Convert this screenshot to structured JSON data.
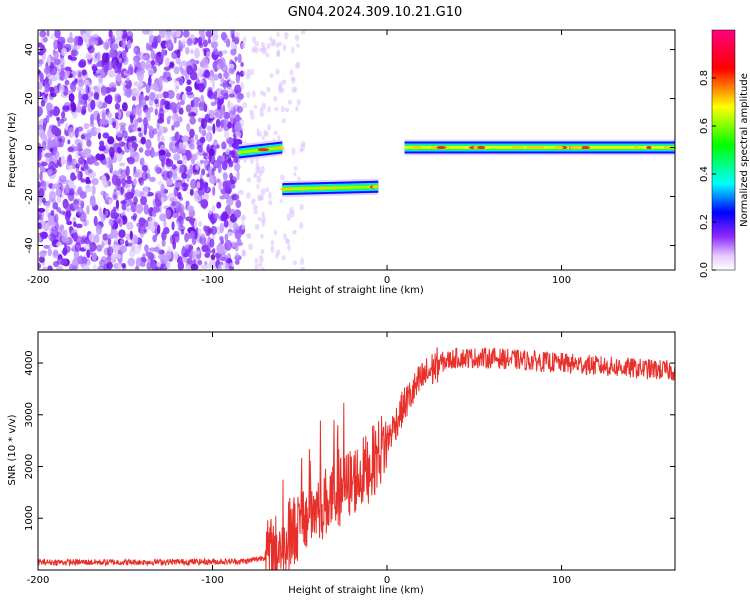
{
  "title": "GN04.2024.309.10.21.G10",
  "chart_data": [
    {
      "type": "heatmap",
      "xlabel": "Height of straight line (km)",
      "ylabel": "Frequency (Hz)",
      "xlim": [
        -200,
        165
      ],
      "ylim": [
        -50,
        48
      ],
      "xticks": [
        "-200",
        "-100",
        "0",
        "100"
      ],
      "xtick_values": [
        -200,
        -100,
        0,
        100
      ],
      "yticks": [
        "-40",
        "-20",
        "0",
        "20",
        "40"
      ],
      "ytick_values": [
        -40,
        -20,
        0,
        20,
        40
      ],
      "colorbar": {
        "label": "Normalized spectral amplitude",
        "ticks": [
          "0.0",
          "0.2",
          "0.4",
          "0.6",
          "0.8"
        ],
        "tick_values": [
          0.0,
          0.2,
          0.4,
          0.6,
          0.8
        ],
        "range": [
          0,
          1
        ]
      },
      "noise_region_x": [
        -200,
        -83
      ],
      "tracks": [
        {
          "x": [
            -85,
            -60
          ],
          "freq": [
            -2,
            0
          ],
          "amp": 0.6
        },
        {
          "x": [
            -60,
            -5
          ],
          "freq": [
            -17,
            -16
          ],
          "amp": 0.75
        },
        {
          "x": [
            10,
            165
          ],
          "freq": [
            0,
            0
          ],
          "amp": 0.9
        }
      ]
    },
    {
      "type": "line",
      "xlabel": "Height of straight line (km)",
      "ylabel": "SNR (10 * v/v)",
      "xlim": [
        -200,
        165
      ],
      "ylim": [
        0,
        4600
      ],
      "xticks": [
        "-200",
        "-100",
        "0",
        "100"
      ],
      "xtick_values": [
        -200,
        -100,
        0,
        100
      ],
      "yticks": [
        "1000",
        "2000",
        "3000",
        "4000"
      ],
      "ytick_values": [
        1000,
        2000,
        3000,
        4000
      ],
      "color": "#e8302a",
      "x": [
        -200,
        -150,
        -100,
        -80,
        -70,
        -60,
        -50,
        -40,
        -30,
        -20,
        -10,
        0,
        10,
        20,
        30,
        40,
        60,
        80,
        100,
        120,
        140,
        165
      ],
      "values": [
        150,
        150,
        160,
        170,
        250,
        500,
        900,
        1200,
        1450,
        1700,
        2000,
        2500,
        3200,
        3700,
        4000,
        4100,
        4100,
        4050,
        4000,
        3950,
        3900,
        3850
      ]
    }
  ]
}
